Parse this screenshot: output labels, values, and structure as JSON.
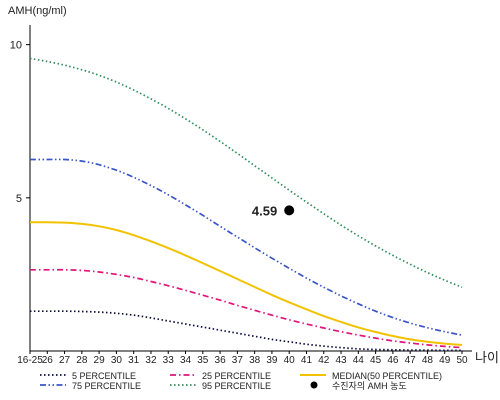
{
  "chart_data": {
    "type": "line",
    "ylabel": "AMH(ng/ml)",
    "xlabel": "나이",
    "categories": [
      "16-25",
      "26",
      "27",
      "28",
      "29",
      "30",
      "31",
      "32",
      "33",
      "34",
      "35",
      "36",
      "37",
      "38",
      "39",
      "40",
      "41",
      "42",
      "43",
      "44",
      "45",
      "46",
      "47",
      "48",
      "49",
      "50"
    ],
    "ylim": [
      0,
      11
    ],
    "yticks": [
      5,
      10
    ],
    "grid": false,
    "series": [
      {
        "name": "5 PERCENTILE",
        "color": "#0a0a3c",
        "dash": "dot",
        "values": [
          1.3,
          1.3,
          1.3,
          1.29,
          1.27,
          1.23,
          1.17,
          1.08,
          0.98,
          0.88,
          0.78,
          0.68,
          0.58,
          0.48,
          0.38,
          0.3,
          0.22,
          0.16,
          0.11,
          0.07,
          0.05,
          0.04,
          0.03,
          0.03,
          0.02,
          0.02
        ]
      },
      {
        "name": "25 PERCENTILE",
        "color": "#e0147a",
        "dash": "dashdot",
        "values": [
          2.65,
          2.65,
          2.65,
          2.63,
          2.58,
          2.5,
          2.4,
          2.27,
          2.13,
          1.98,
          1.82,
          1.66,
          1.49,
          1.33,
          1.17,
          1.02,
          0.88,
          0.75,
          0.63,
          0.52,
          0.42,
          0.33,
          0.26,
          0.2,
          0.15,
          0.11
        ]
      },
      {
        "name": "MEDIAN(50 PERCENTILE)",
        "color": "#f2c200",
        "dash": "solid",
        "values": [
          4.2,
          4.2,
          4.19,
          4.15,
          4.07,
          3.95,
          3.78,
          3.58,
          3.36,
          3.12,
          2.87,
          2.61,
          2.35,
          2.09,
          1.83,
          1.59,
          1.36,
          1.14,
          0.95,
          0.77,
          0.62,
          0.49,
          0.38,
          0.3,
          0.24,
          0.2
        ]
      },
      {
        "name": "75 PERCENTILE",
        "color": "#3a55c6",
        "dash": "dashdotdot",
        "values": [
          6.25,
          6.25,
          6.25,
          6.2,
          6.08,
          5.9,
          5.67,
          5.4,
          5.1,
          4.77,
          4.43,
          4.07,
          3.72,
          3.37,
          3.03,
          2.7,
          2.38,
          2.08,
          1.8,
          1.54,
          1.3,
          1.09,
          0.91,
          0.76,
          0.63,
          0.52
        ]
      },
      {
        "name": "95 PERCENTILE",
        "color": "#2e8b57",
        "dash": "dot",
        "values": [
          9.55,
          9.45,
          9.33,
          9.18,
          9.0,
          8.78,
          8.52,
          8.23,
          7.92,
          7.58,
          7.22,
          6.84,
          6.45,
          6.05,
          5.65,
          5.25,
          4.86,
          4.48,
          4.11,
          3.76,
          3.43,
          3.12,
          2.83,
          2.56,
          2.31,
          2.08
        ]
      }
    ],
    "point": {
      "label": "수진자의 AMH 농도",
      "x": "40",
      "y": 4.59,
      "value_label": "4.59",
      "color": "#000000"
    }
  }
}
